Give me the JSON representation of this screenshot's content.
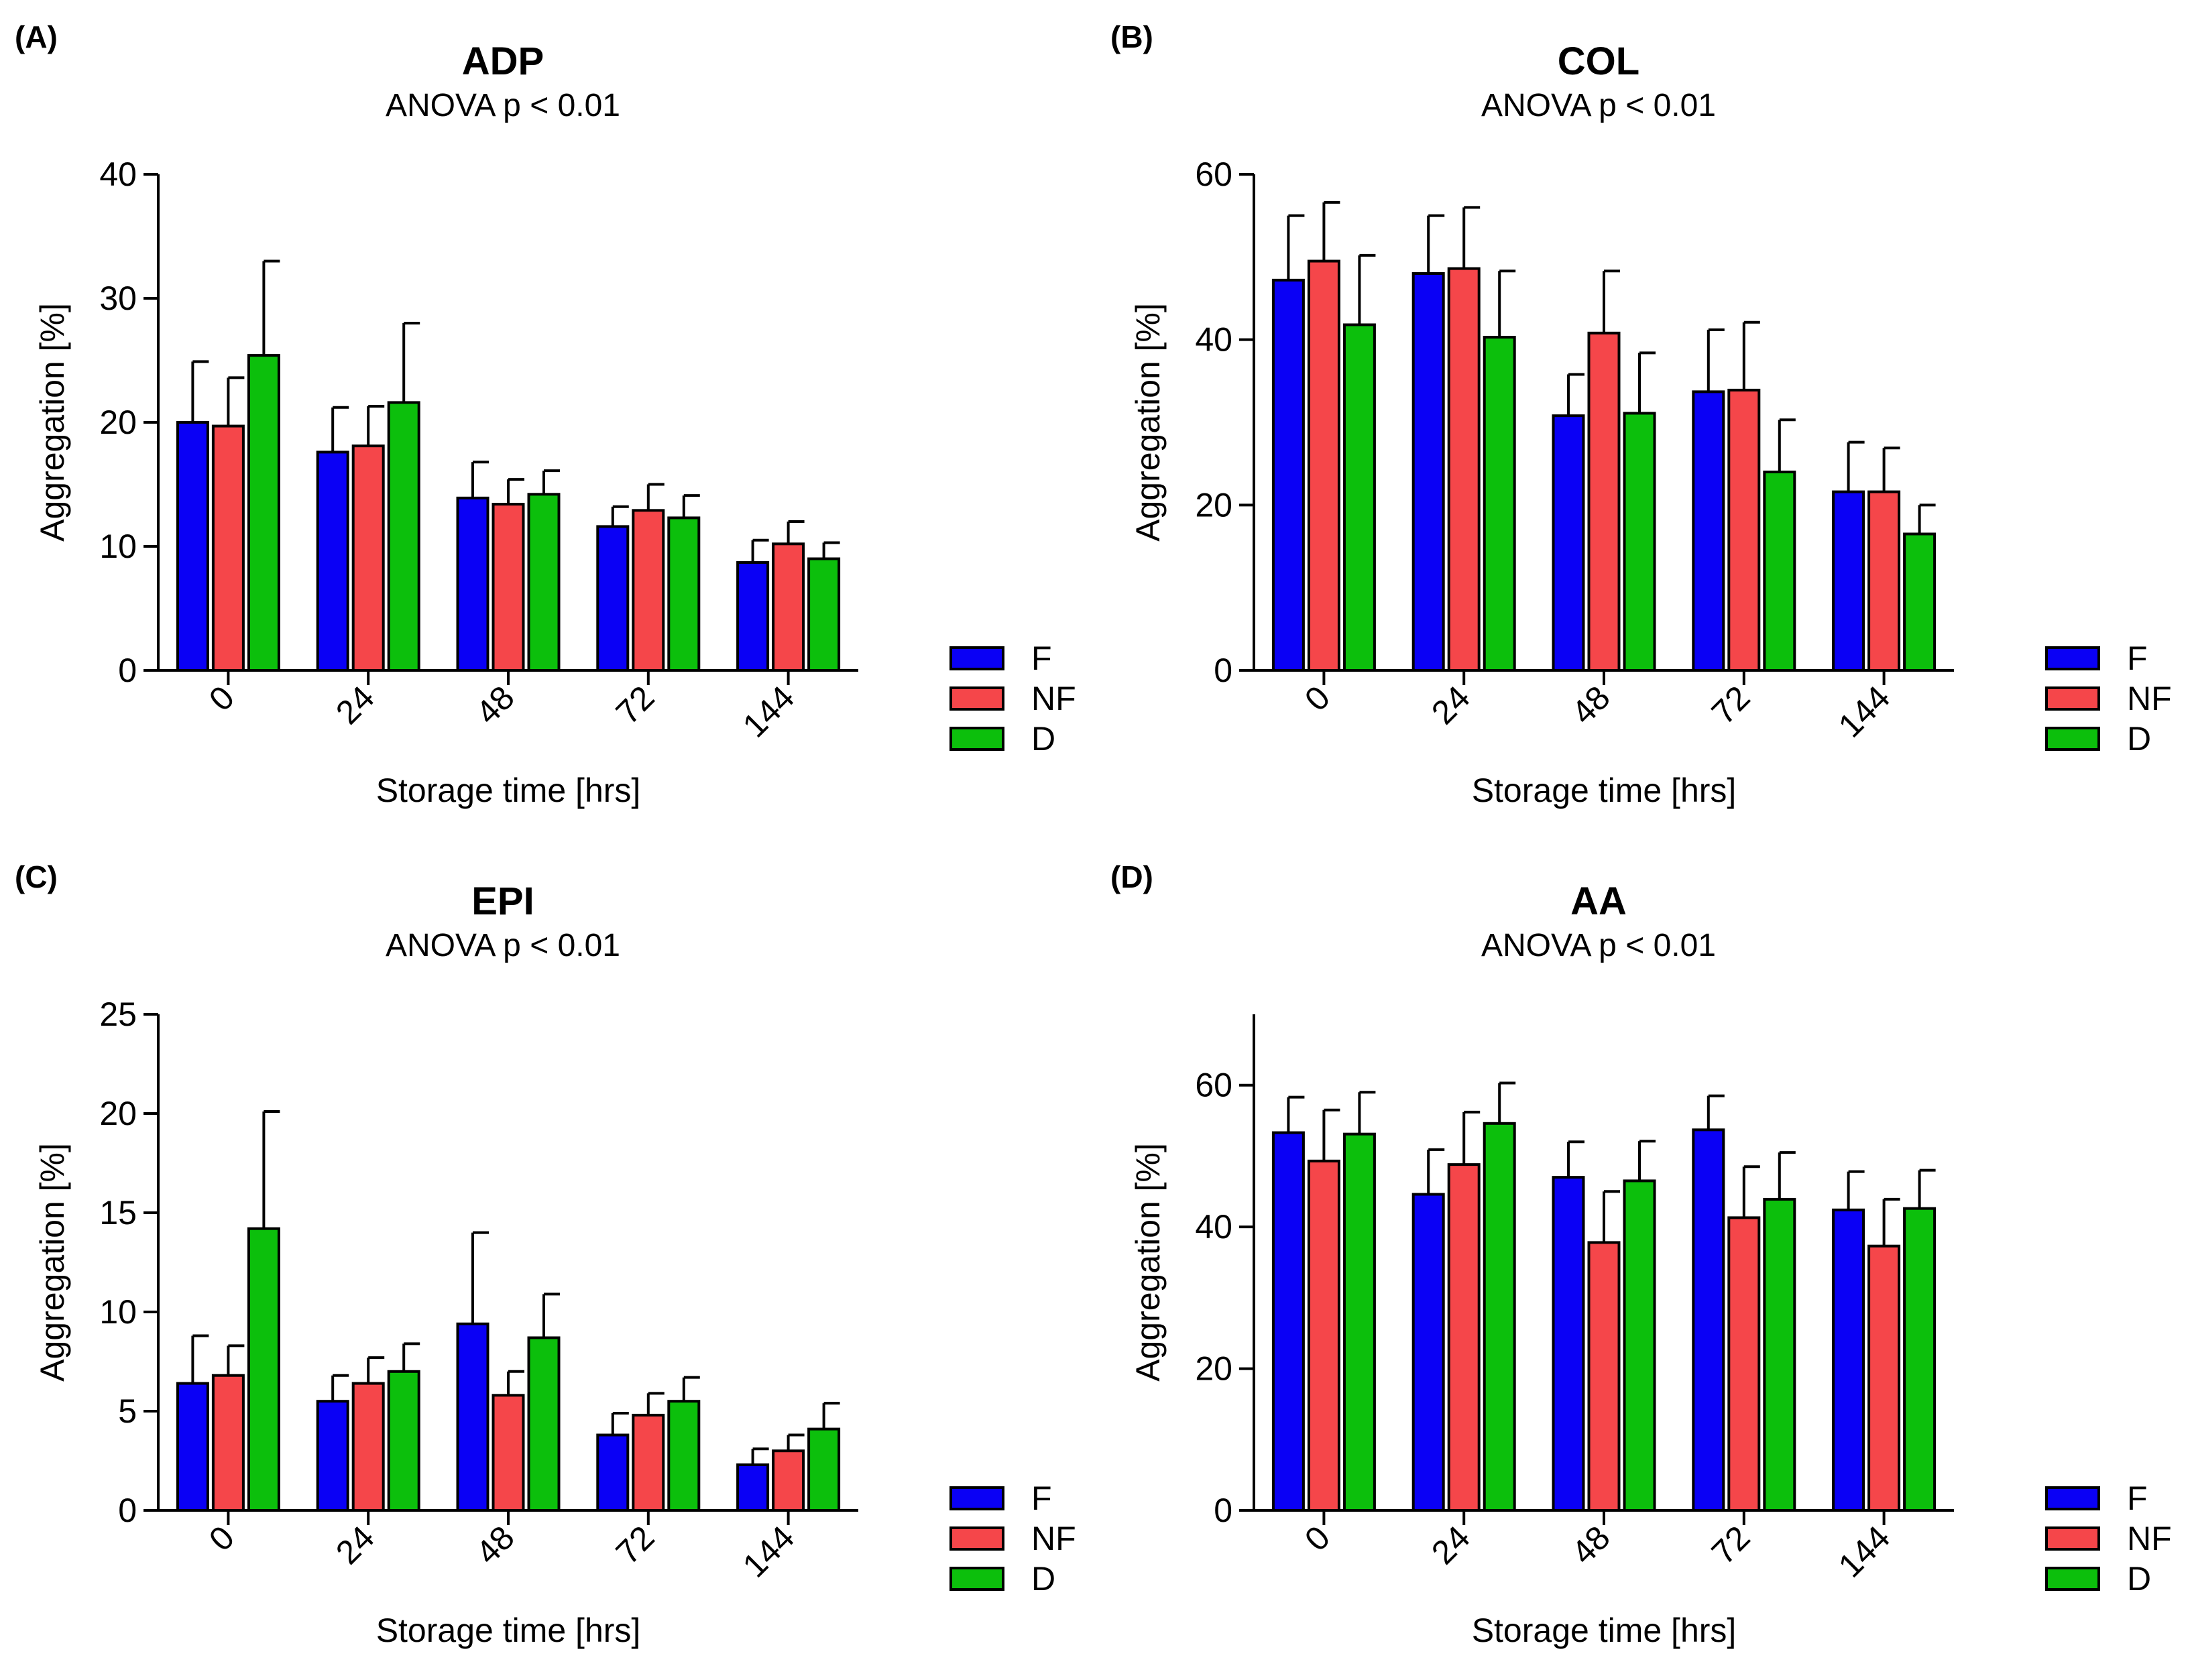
{
  "colors": {
    "F": "#0a00f5",
    "NF": "#f5464a",
    "D": "#0cbf0c",
    "axis": "#000000"
  },
  "legend": [
    {
      "key": "F",
      "label": "F"
    },
    {
      "key": "NF",
      "label": "NF"
    },
    {
      "key": "D",
      "label": "D"
    }
  ],
  "panels": [
    {
      "id": "A",
      "label": "(A)",
      "title": "ADP",
      "subtitle": "ANOVA p < 0.01",
      "xlabel": "Storage time [hrs]",
      "ylabel": "Aggregation [%]"
    },
    {
      "id": "B",
      "label": "(B)",
      "title": "COL",
      "subtitle": "ANOVA p < 0.01",
      "xlabel": "Storage time [hrs]",
      "ylabel": "Aggregation [%]"
    },
    {
      "id": "C",
      "label": "(C)",
      "title": "EPI",
      "subtitle": "ANOVA p < 0.01",
      "xlabel": "Storage time [hrs]",
      "ylabel": "Aggregation [%]"
    },
    {
      "id": "D",
      "label": "(D)",
      "title": "AA",
      "subtitle": "ANOVA p < 0.01",
      "xlabel": "Storage time [hrs]",
      "ylabel": "Aggregation [%]"
    }
  ],
  "chart_data": [
    {
      "type": "bar",
      "title": "ADP",
      "subtitle": "ANOVA p < 0.01",
      "xlabel": "Storage time [hrs]",
      "ylabel": "Aggregation [%]",
      "categories": [
        "0",
        "24",
        "48",
        "72",
        "144"
      ],
      "ylim": [
        0,
        40
      ],
      "yticks": [
        0,
        10,
        20,
        30,
        40
      ],
      "series": [
        {
          "name": "F",
          "values": [
            20.0,
            17.6,
            13.9,
            11.6,
            8.7
          ],
          "errors": [
            4.9,
            3.6,
            2.9,
            1.6,
            1.8
          ]
        },
        {
          "name": "NF",
          "values": [
            19.7,
            18.1,
            13.4,
            12.9,
            10.2
          ],
          "errors": [
            3.9,
            3.2,
            2.0,
            2.1,
            1.8
          ]
        },
        {
          "name": "D",
          "values": [
            25.4,
            21.6,
            14.2,
            12.3,
            9.0
          ],
          "errors": [
            7.6,
            6.4,
            1.9,
            1.8,
            1.3
          ]
        }
      ]
    },
    {
      "type": "bar",
      "title": "COL",
      "subtitle": "ANOVA p < 0.01",
      "xlabel": "Storage time [hrs]",
      "ylabel": "Aggregation [%]",
      "categories": [
        "0",
        "24",
        "48",
        "72",
        "144"
      ],
      "ylim": [
        0,
        60
      ],
      "yticks": [
        0,
        20,
        40,
        60
      ],
      "series": [
        {
          "name": "F",
          "values": [
            47.2,
            48.0,
            30.8,
            33.7,
            21.6
          ],
          "errors": [
            7.8,
            7.0,
            5.0,
            7.5,
            6.0
          ]
        },
        {
          "name": "NF",
          "values": [
            49.5,
            48.6,
            40.8,
            33.9,
            21.6
          ],
          "errors": [
            7.1,
            7.4,
            7.5,
            8.2,
            5.3
          ]
        },
        {
          "name": "D",
          "values": [
            41.8,
            40.3,
            31.1,
            24.0,
            16.5
          ],
          "errors": [
            8.4,
            8.0,
            7.3,
            6.3,
            3.5
          ]
        }
      ]
    },
    {
      "type": "bar",
      "title": "EPI",
      "subtitle": "ANOVA p < 0.01",
      "xlabel": "Storage time [hrs]",
      "ylabel": "Aggregation [%]",
      "categories": [
        "0",
        "24",
        "48",
        "72",
        "144"
      ],
      "ylim": [
        0,
        25
      ],
      "yticks": [
        0,
        5,
        10,
        15,
        20,
        25
      ],
      "series": [
        {
          "name": "F",
          "values": [
            6.4,
            5.5,
            9.4,
            3.8,
            2.3
          ],
          "errors": [
            2.4,
            1.3,
            4.6,
            1.1,
            0.8
          ]
        },
        {
          "name": "NF",
          "values": [
            6.8,
            6.4,
            5.8,
            4.8,
            3.0
          ],
          "errors": [
            1.5,
            1.3,
            1.2,
            1.1,
            0.8
          ]
        },
        {
          "name": "D",
          "values": [
            14.2,
            7.0,
            8.7,
            5.5,
            4.1
          ],
          "errors": [
            5.9,
            1.4,
            2.2,
            1.2,
            1.3
          ]
        }
      ]
    },
    {
      "type": "bar",
      "title": "AA",
      "subtitle": "ANOVA p < 0.01",
      "xlabel": "Storage time [hrs]",
      "ylabel": "Aggregation [%]",
      "categories": [
        "0",
        "24",
        "48",
        "72",
        "144"
      ],
      "ylim": [
        0,
        70
      ],
      "yticks": [
        0,
        20,
        40,
        60
      ],
      "series": [
        {
          "name": "F",
          "values": [
            53.3,
            44.6,
            47.0,
            53.7,
            42.4
          ],
          "errors": [
            5.0,
            6.3,
            5.0,
            4.8,
            5.4
          ]
        },
        {
          "name": "NF",
          "values": [
            49.3,
            48.8,
            37.8,
            41.3,
            37.3
          ],
          "errors": [
            7.2,
            7.4,
            7.2,
            7.2,
            6.6
          ]
        },
        {
          "name": "D",
          "values": [
            53.1,
            54.6,
            46.5,
            43.9,
            42.6
          ],
          "errors": [
            5.9,
            5.7,
            5.6,
            6.6,
            5.4
          ]
        }
      ]
    }
  ]
}
